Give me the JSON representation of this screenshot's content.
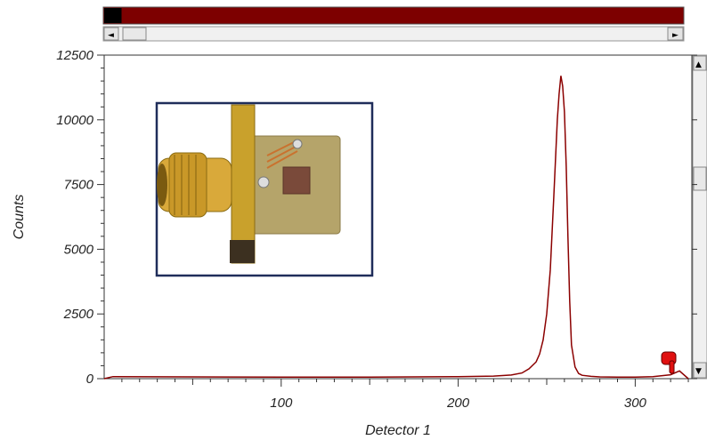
{
  "chart_data": {
    "type": "line",
    "title": "",
    "xlabel": "Detector 1",
    "ylabel": "Counts",
    "xlim": [
      0,
      332
    ],
    "ylim": [
      0,
      12500
    ],
    "x_ticks": [
      100,
      200,
      300
    ],
    "y_ticks": [
      0,
      2500,
      5000,
      7500,
      10000,
      12500
    ],
    "grid": false,
    "series": [
      {
        "color": "#8b0000",
        "x": [
          0,
          5,
          50,
          100,
          150,
          200,
          220,
          230,
          236,
          240,
          244,
          246,
          248,
          250,
          252,
          254,
          256,
          257,
          258,
          259,
          260,
          261,
          262,
          263,
          264,
          266,
          268,
          270,
          275,
          280,
          290,
          300,
          310,
          320,
          325,
          330
        ],
        "y": [
          0,
          80,
          70,
          60,
          60,
          80,
          100,
          140,
          220,
          380,
          650,
          950,
          1500,
          2500,
          4200,
          7000,
          10000,
          11000,
          11700,
          11300,
          10300,
          8200,
          5500,
          3000,
          1300,
          450,
          200,
          130,
          90,
          70,
          60,
          60,
          80,
          150,
          300,
          0
        ]
      }
    ]
  },
  "inset": {
    "description_icon": "bnc-connector-detector-photo-icon"
  },
  "colors": {
    "bar_fill": "#7d0000",
    "bar_progress": "#000000",
    "frame": "#1f2d5a"
  },
  "top_bar": {
    "progress": 0.03
  },
  "marker": {
    "icon": "red-hand-pointer-icon"
  }
}
